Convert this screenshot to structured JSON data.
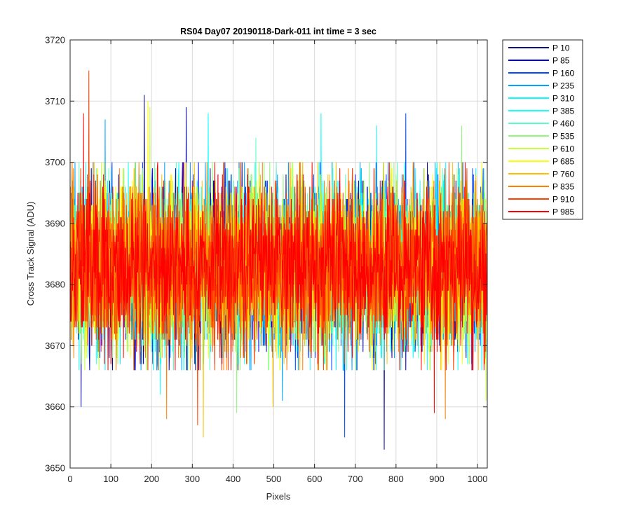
{
  "chart_data": {
    "type": "line",
    "title": "RS04 Day07 20190118-Dark-011 int time = 3 sec",
    "xlabel": "Pixels",
    "ylabel": "Cross Track Signal (ADU)",
    "xlim": [
      0,
      1024
    ],
    "ylim": [
      3650,
      3720
    ],
    "xticks": [
      0,
      100,
      200,
      300,
      400,
      500,
      600,
      700,
      800,
      900,
      1000
    ],
    "yticks": [
      3650,
      3660,
      3670,
      3680,
      3690,
      3700,
      3710,
      3720
    ],
    "grid": true,
    "legend_position": "outside-top-right",
    "n_points": 1024,
    "series": [
      {
        "name": "P 10",
        "color": "#00008F",
        "mean": 3683,
        "std": 6.6,
        "peaks": [
          [
            181,
            3711
          ],
          [
            770,
            3653
          ]
        ]
      },
      {
        "name": "P 85",
        "color": "#0000EA",
        "mean": 3683,
        "std": 6.6,
        "peaks": [
          [
            284,
            3709
          ],
          [
            26,
            3660
          ]
        ]
      },
      {
        "name": "P 160",
        "color": "#0047FF",
        "mean": 3683,
        "std": 6.6,
        "peaks": [
          [
            673,
            3655
          ],
          [
            823,
            3708
          ]
        ]
      },
      {
        "name": "P 235",
        "color": "#00A3FF",
        "mean": 3683,
        "std": 6.6,
        "peaks": [
          [
            85,
            3707
          ],
          [
            520,
            3661
          ]
        ]
      },
      {
        "name": "P 310",
        "color": "#00FFFF",
        "mean": 3683,
        "std": 6.6,
        "peaks": [
          [
            338,
            3708
          ],
          [
            615,
            3708
          ]
        ]
      },
      {
        "name": "P 385",
        "color": "#14FFFF",
        "mean": 3683,
        "std": 6.6,
        "peaks": [
          [
            752,
            3706
          ],
          [
            220,
            3662
          ]
        ]
      },
      {
        "name": "P 460",
        "color": "#5CFFC0",
        "mean": 3683,
        "std": 6.6,
        "peaks": [
          [
            455,
            3704
          ]
        ]
      },
      {
        "name": "P 535",
        "color": "#8EF878",
        "mean": 3683,
        "std": 6.6,
        "peaks": [
          [
            408,
            3659
          ],
          [
            960,
            3706
          ]
        ]
      },
      {
        "name": "P 610",
        "color": "#C4FF3A",
        "mean": 3683,
        "std": 6.6,
        "peaks": [
          [
            195,
            3709
          ],
          [
            1020,
            3661
          ]
        ]
      },
      {
        "name": "P 685",
        "color": "#FFFF00",
        "mean": 3683,
        "std": 6.6,
        "peaks": [
          [
            190,
            3710
          ]
        ]
      },
      {
        "name": "P 760",
        "color": "#FFBF00",
        "mean": 3683,
        "std": 6.6,
        "peaks": [
          [
            326,
            3655
          ],
          [
            497,
            3660
          ]
        ]
      },
      {
        "name": "P 835",
        "color": "#FF8000",
        "mean": 3683,
        "std": 6.6,
        "peaks": [
          [
            920,
            3658
          ],
          [
            236,
            3658
          ]
        ]
      },
      {
        "name": "P 910",
        "color": "#FF4000",
        "mean": 3683,
        "std": 6.6,
        "peaks": [
          [
            45,
            3715
          ],
          [
            312,
            3657
          ]
        ]
      },
      {
        "name": "P 985",
        "color": "#FF0000",
        "mean": 3683,
        "std": 6.6,
        "peaks": [
          [
            32,
            3708
          ],
          [
            893,
            3659
          ]
        ]
      }
    ]
  }
}
